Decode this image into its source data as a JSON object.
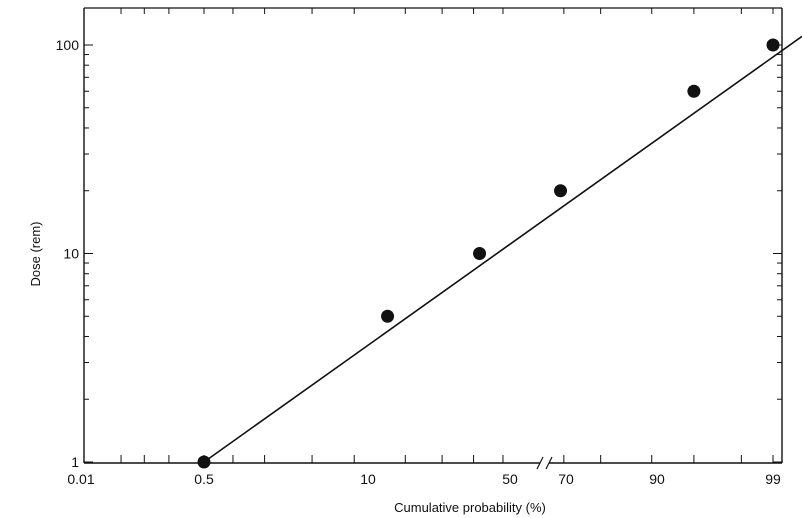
{
  "chart_data": {
    "type": "scatter",
    "title": "",
    "xlabel": "Cumulative probability (%)",
    "ylabel": "Dose (rem)",
    "x_scale": "probability",
    "y_scale": "log",
    "ylim": [
      1,
      100
    ],
    "grid": false,
    "legend": "none",
    "x_tick_labels": [
      "0.01",
      "0.5",
      "10",
      "50",
      "70",
      "90",
      "99"
    ],
    "y_tick_labels": [
      "1",
      "10",
      "100"
    ],
    "series": [
      {
        "x": [
          0.5,
          16,
          42,
          69,
          95,
          99
        ],
        "y": [
          1,
          5,
          10,
          20,
          60,
          100
        ]
      }
    ],
    "fit_line": {
      "x": [
        0.5,
        99.5
      ],
      "y": [
        1,
        110
      ]
    },
    "colors": {
      "ink": "#111111"
    }
  }
}
